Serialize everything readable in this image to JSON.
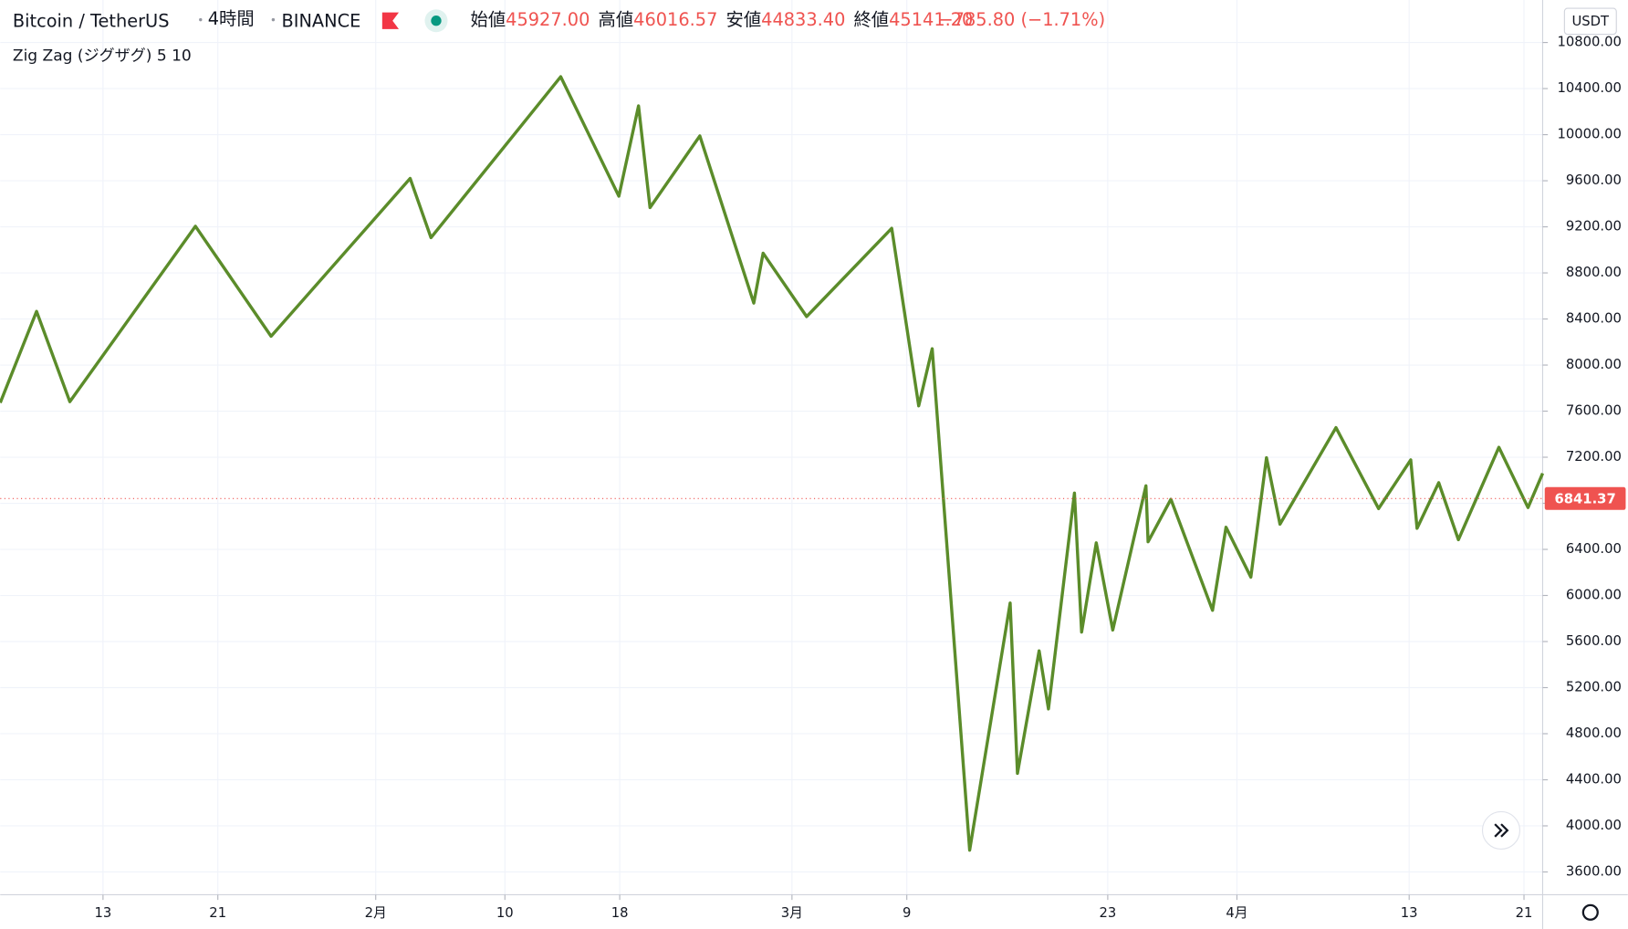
{
  "header": {
    "symbol": "Bitcoin / TetherUS",
    "interval": "4時間",
    "exchange": "BINANCE",
    "ohlc": [
      {
        "label": "始値",
        "value": "45927.00"
      },
      {
        "label": "高値",
        "value": "46016.57"
      },
      {
        "label": "安値",
        "value": "44833.40"
      },
      {
        "label": "終値",
        "value": "45141.20"
      }
    ],
    "change": "−785.80 (−1.71%)",
    "indicator": "Zig Zag (ジグザグ) 5 10",
    "currency": "USDT"
  },
  "chart_data": {
    "type": "line",
    "series": [
      {
        "name": "Zig Zag (ジグザグ) 5 10",
        "color": "#5b8c2a",
        "x": [
          5.84,
          8.37,
          10.69,
          19.44,
          24.71,
          34.4,
          35.85,
          44.89,
          48.94,
          50.31,
          51.11,
          54.58,
          58.34,
          58.99,
          62.02,
          67.95,
          69.83,
          70.77,
          73.38,
          76.2,
          76.71,
          78.22,
          78.87,
          80.68,
          81.18,
          82.2,
          83.35,
          85.66,
          85.81,
          87.4,
          90.3,
          91.24,
          92.97,
          94.06,
          95.0,
          98.9,
          101.87,
          104.11,
          104.55,
          106.06,
          107.43,
          110.25,
          112.28,
          113.3
        ],
        "values": [
          7673,
          8466,
          7682,
          9205,
          8250,
          9620,
          9106,
          10503,
          9466,
          10250,
          9367,
          9989,
          8538,
          8971,
          8421,
          9187,
          7646,
          8142,
          3789,
          5934,
          4456,
          5519,
          5015,
          6889,
          5682,
          6457,
          5700,
          6952,
          6466,
          6835,
          5871,
          6592,
          6159,
          7196,
          6619,
          7457,
          6754,
          7177,
          6583,
          6979,
          6484,
          7286,
          6763,
          7060
        ]
      }
    ],
    "last_price": 6841.37,
    "xlim": [
      5.84,
      113.3
    ],
    "xticks": [
      {
        "value": 13,
        "label": "13"
      },
      {
        "value": 21,
        "label": "21"
      },
      {
        "value": 32,
        "label": "2月"
      },
      {
        "value": 41,
        "label": "10"
      },
      {
        "value": 49,
        "label": "18"
      },
      {
        "value": 61,
        "label": "3月"
      },
      {
        "value": 69,
        "label": "9"
      },
      {
        "value": 83,
        "label": "23"
      },
      {
        "value": 92,
        "label": "4月"
      },
      {
        "value": 104,
        "label": "13"
      },
      {
        "value": 112,
        "label": "21"
      }
    ],
    "ylim": [
      3402,
      11169
    ],
    "yticks": [
      {
        "value": 3600,
        "label": "3600.00"
      },
      {
        "value": 4000,
        "label": "4000.00"
      },
      {
        "value": 4400,
        "label": "4400.00"
      },
      {
        "value": 4800,
        "label": "4800.00"
      },
      {
        "value": 5200,
        "label": "5200.00"
      },
      {
        "value": 5600,
        "label": "5600.00"
      },
      {
        "value": 6000,
        "label": "6000.00"
      },
      {
        "value": 6400,
        "label": "6400.00"
      },
      {
        "value": 6800,
        "label": "6800.00"
      },
      {
        "value": 7200,
        "label": "7200.00"
      },
      {
        "value": 7600,
        "label": "7600.00"
      },
      {
        "value": 8000,
        "label": "8000.00"
      },
      {
        "value": 8400,
        "label": "8400.00"
      },
      {
        "value": 8800,
        "label": "8800.00"
      },
      {
        "value": 9200,
        "label": "9200.00"
      },
      {
        "value": 9600,
        "label": "9600.00"
      },
      {
        "value": 10000,
        "label": "10000.00"
      },
      {
        "value": 10400,
        "label": "10400.00"
      },
      {
        "value": 10800,
        "label": "10800.00"
      }
    ],
    "grid": true
  }
}
